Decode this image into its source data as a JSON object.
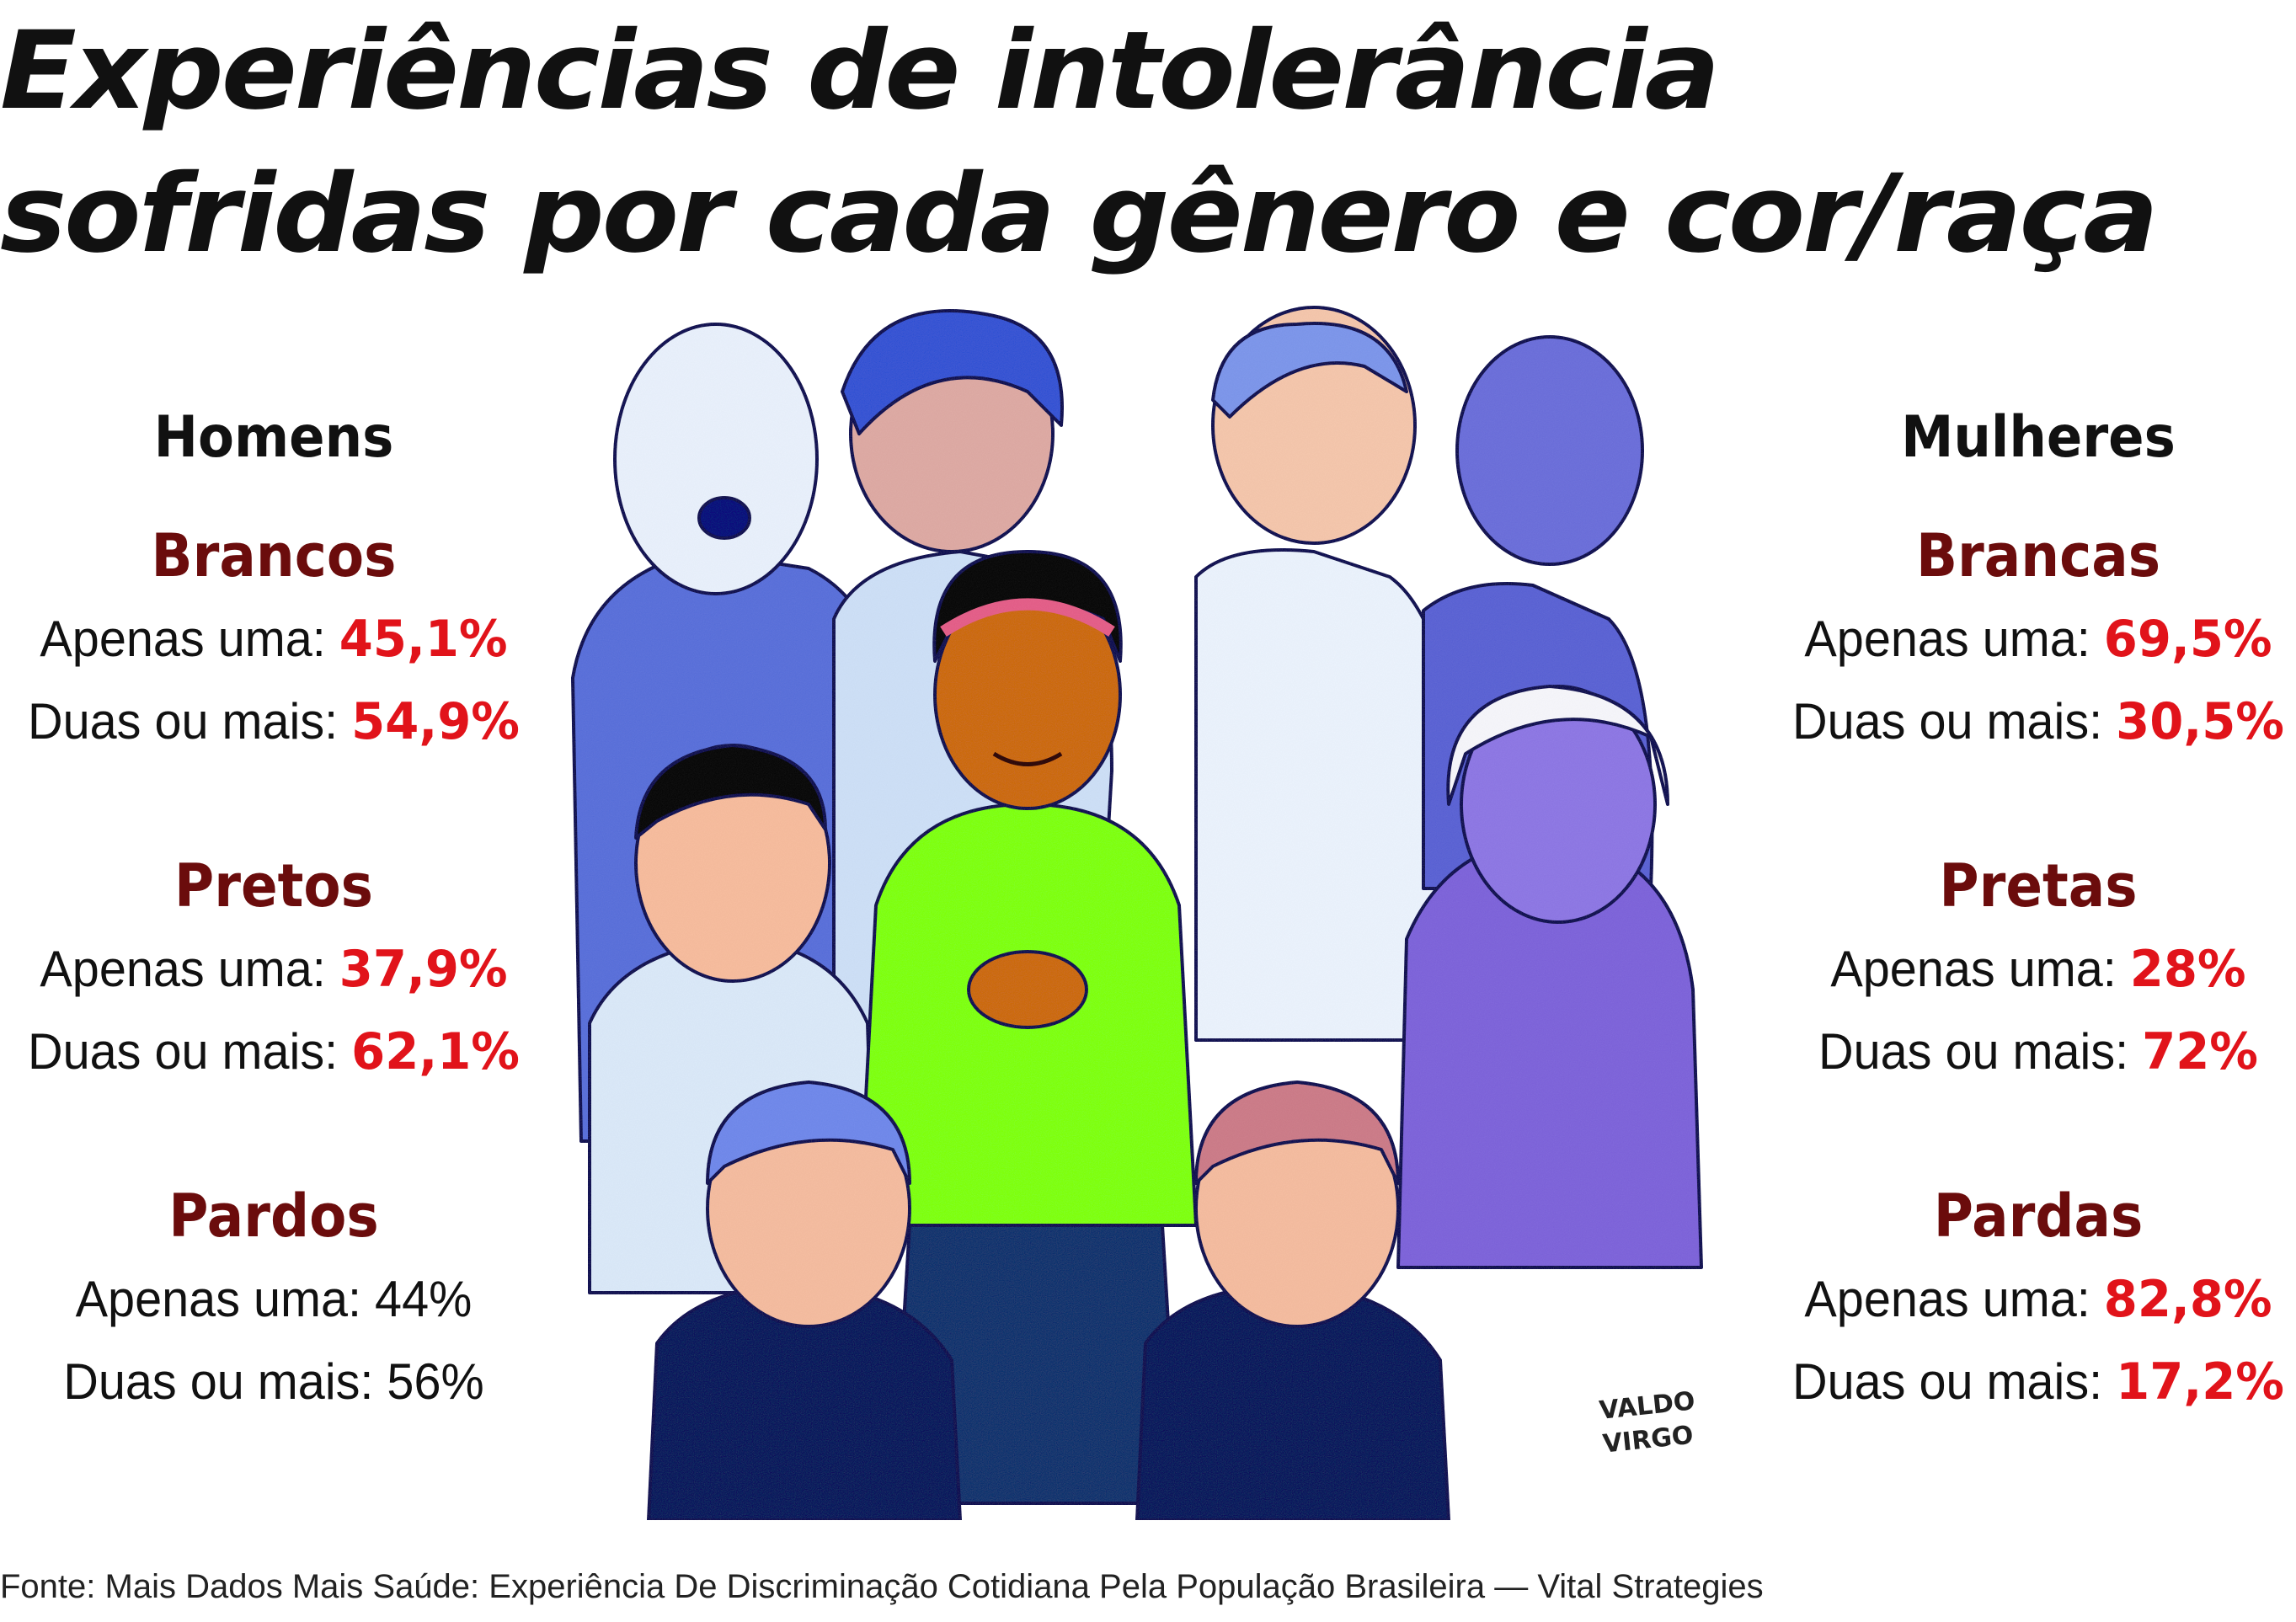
{
  "title": {
    "line1": "Experiências de intolerância",
    "line2": "sofridas por cada gênero e cor/raça"
  },
  "men": {
    "heading": "Homens",
    "groups": [
      {
        "name": "Brancos",
        "one_label": "Apenas uma:",
        "one_value": "45,1%",
        "two_label": "Duas ou mais:",
        "two_value": "54,9%"
      },
      {
        "name": "Pretos",
        "one_label": "Apenas uma:",
        "one_value": "37,9%",
        "two_label": "Duas ou mais:",
        "two_value": "62,1%"
      },
      {
        "name": "Pardos",
        "one_label": "Apenas uma:",
        "one_value": "44%",
        "two_label": "Duas ou mais:",
        "two_value": "56%"
      }
    ]
  },
  "women": {
    "heading": "Mulheres",
    "groups": [
      {
        "name": "Brancas",
        "one_label": "Apenas uma:",
        "one_value": "69,5%",
        "two_label": "Duas ou mais:",
        "two_value": "30,5%"
      },
      {
        "name": "Pretas",
        "one_label": "Apenas uma:",
        "one_value": "28%",
        "two_label": "Duas ou mais:",
        "two_value": "72%"
      },
      {
        "name": "Pardas",
        "one_label": "Apenas uma:",
        "one_value": "82,8%",
        "two_label": "Duas ou mais:",
        "two_value": "17,2%"
      }
    ]
  },
  "signature": {
    "line1": "VALDO",
    "line2": "VIRGO"
  },
  "source": "Fonte: Mais Dados Mais Saúde: Experiência De Discriminação Cotidiana Pela População Brasileira — Vital Strategies",
  "colors": {
    "title": "#111111",
    "group_name": "#6b0c0c",
    "highlight": "#e1131a",
    "hoodie": "#7dff2a",
    "skin_center": "#c86a2a"
  }
}
